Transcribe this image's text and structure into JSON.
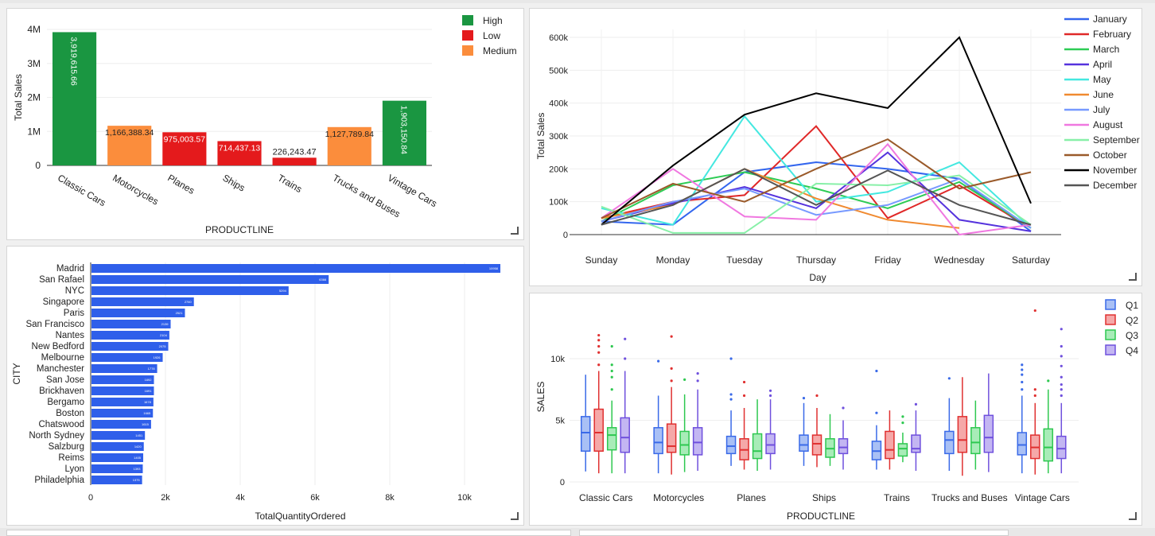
{
  "charts": {
    "bar_productline": {
      "type": "bar",
      "xlabel": "PRODUCTLINE",
      "ylabel": "Total Sales",
      "ylim": [
        0,
        4000000
      ],
      "yticks": [
        0,
        1000000,
        2000000,
        3000000,
        4000000
      ],
      "ytick_labels": [
        "0",
        "1M",
        "2M",
        "3M",
        "4M"
      ],
      "categories": [
        "Classic Cars",
        "Motorcycles",
        "Planes",
        "Ships",
        "Trains",
        "Trucks and Buses",
        "Vintage Cars"
      ],
      "values": [
        3919615.66,
        1166388.34,
        975003.57,
        714437.13,
        226243.47,
        1127789.84,
        1903150.84
      ],
      "value_labels": [
        "3,919,615.66",
        "1,166,388.34",
        "975,003.57",
        "714,437.13",
        "226,243.47",
        "1,127,789.84",
        "1,903,150.84"
      ],
      "groups": [
        "High",
        "Medium",
        "Low",
        "Low",
        "Low",
        "Medium",
        "High"
      ],
      "legend": [
        {
          "name": "High",
          "color": "#1a9641"
        },
        {
          "name": "Low",
          "color": "#e41a1c"
        },
        {
          "name": "Medium",
          "color": "#fb8d3c"
        }
      ],
      "legend_position": "top-right"
    },
    "line_day": {
      "type": "line",
      "xlabel": "Day",
      "ylabel": "Total Sales",
      "categories": [
        "Sunday",
        "Monday",
        "Tuesday",
        "Thursday",
        "Friday",
        "Wednesday",
        "Saturday"
      ],
      "ylim": [
        0,
        600000
      ],
      "yticks": [
        0,
        100000,
        200000,
        300000,
        400000,
        500000,
        600000
      ],
      "ytick_labels": [
        "0",
        "100k",
        "200k",
        "300k",
        "400k",
        "500k",
        "600k"
      ],
      "grid": true,
      "legend_position": "top-right",
      "series": [
        {
          "name": "January",
          "color": "#3366ee",
          "values": [
            40000,
            30000,
            190000,
            220000,
            200000,
            170000,
            10000
          ]
        },
        {
          "name": "February",
          "color": "#e02828",
          "values": [
            50000,
            100000,
            120000,
            330000,
            50000,
            150000,
            20000
          ]
        },
        {
          "name": "March",
          "color": "#2ecc55",
          "values": [
            40000,
            150000,
            190000,
            140000,
            80000,
            160000,
            20000
          ]
        },
        {
          "name": "April",
          "color": "#5533dd",
          "values": [
            40000,
            95000,
            145000,
            80000,
            250000,
            45000,
            10000
          ]
        },
        {
          "name": "May",
          "color": "#44e8e0",
          "values": [
            80000,
            30000,
            360000,
            100000,
            130000,
            220000,
            20000
          ]
        },
        {
          "name": "June",
          "color": "#f08a30",
          "values": [
            50000,
            90000,
            200000,
            110000,
            45000,
            20000,
            null
          ]
        },
        {
          "name": "July",
          "color": "#7799ff",
          "values": [
            40000,
            100000,
            140000,
            60000,
            90000,
            170000,
            20000
          ]
        },
        {
          "name": "August",
          "color": "#f078e0",
          "values": [
            50000,
            200000,
            55000,
            45000,
            275000,
            0,
            30000
          ]
        },
        {
          "name": "September",
          "color": "#88f0a8",
          "values": [
            85000,
            5000,
            5000,
            155000,
            150000,
            180000,
            30000
          ]
        },
        {
          "name": "October",
          "color": "#9a5a2a",
          "values": [
            50000,
            155000,
            100000,
            200000,
            290000,
            140000,
            190000
          ]
        },
        {
          "name": "November",
          "color": "#000000",
          "values": [
            30000,
            210000,
            365000,
            430000,
            385000,
            600000,
            95000
          ]
        },
        {
          "name": "December",
          "color": "#555555",
          "values": [
            30000,
            90000,
            200000,
            90000,
            195000,
            90000,
            30000
          ]
        }
      ]
    },
    "hbar_city": {
      "type": "bar",
      "orientation": "horizontal",
      "xlabel": "TotalQuantityOrdered",
      "ylabel": "CITY",
      "xlim": [
        0,
        11000
      ],
      "xticks": [
        0,
        2000,
        4000,
        6000,
        8000,
        10000
      ],
      "xtick_labels": [
        "0",
        "2k",
        "4k",
        "6k",
        "8k",
        "10k"
      ],
      "bar_color": "#2f5fea",
      "categories": [
        "Madrid",
        "San Rafael",
        "NYC",
        "Singapore",
        "Paris",
        "San Francisco",
        "Nantes",
        "New Bedford",
        "Melbourne",
        "Manchester",
        "San Jose",
        "Brickhaven",
        "Bergamo",
        "Boston",
        "Chatswood",
        "North Sydney",
        "Salzburg",
        "Reims",
        "Lyon",
        "Philadelphia"
      ],
      "values": [
        10958,
        6366,
        5294,
        2760,
        2521,
        2139,
        2104,
        2075,
        1926,
        1778,
        1692,
        1691,
        1678,
        1665,
        1615,
        1451,
        1420,
        1405,
        1393,
        1375
      ]
    },
    "box_quarter": {
      "type": "box",
      "xlabel": "PRODUCTLINE",
      "ylabel": "SALES",
      "ylim": [
        0,
        14000
      ],
      "yticks": [
        0,
        5000,
        10000
      ],
      "ytick_labels": [
        "0",
        "5k",
        "10k"
      ],
      "legend_position": "top-right",
      "categories": [
        "Classic Cars",
        "Motorcycles",
        "Planes",
        "Ships",
        "Trains",
        "Trucks and Buses",
        "Vintage Cars"
      ],
      "series": [
        {
          "name": "Q1",
          "color": "#3a6ae8",
          "fill": "#a9c0f5",
          "boxes": [
            [
              850,
              2500,
              4000,
              5300,
              8700
            ],
            [
              700,
              2300,
              3200,
              4400,
              7000
            ],
            [
              1300,
              2300,
              2900,
              3700,
              5800
            ],
            [
              1300,
              2500,
              3000,
              3800,
              6400
            ],
            [
              1000,
              1800,
              2500,
              3300,
              4600
            ],
            [
              900,
              2300,
              3400,
              4100,
              6800
            ],
            [
              700,
              2200,
              3000,
              4000,
              7000
            ]
          ],
          "outliers": [
            [],
            [
              9800
            ],
            [
              6700,
              7100,
              10000
            ],
            [
              6800
            ],
            [
              5600,
              9000
            ],
            [
              8400
            ],
            [
              7500,
              8100,
              8700,
              9100,
              9500
            ]
          ]
        },
        {
          "name": "Q2",
          "color": "#e03030",
          "fill": "#f5a8a8",
          "boxes": [
            [
              700,
              2500,
              4000,
              5900,
              9000
            ],
            [
              600,
              2400,
              2900,
              4700,
              7700
            ],
            [
              1000,
              1800,
              2600,
              3500,
              6000
            ],
            [
              1200,
              2200,
              3100,
              3800,
              6000
            ],
            [
              1000,
              1900,
              2600,
              4100,
              5800
            ],
            [
              500,
              2400,
              3400,
              5300,
              8500
            ],
            [
              600,
              1900,
              2800,
              3800,
              6400
            ]
          ],
          "outliers": [
            [
              9500,
              10500,
              11000,
              11500,
              11900
            ],
            [
              8200,
              9200,
              11800
            ],
            [
              7000,
              8100
            ],
            [
              7000
            ],
            [],
            [],
            [
              7000,
              7500,
              13900
            ]
          ]
        },
        {
          "name": "Q3",
          "color": "#2ec850",
          "fill": "#a8ecb8",
          "boxes": [
            [
              700,
              2600,
              3800,
              4400,
              6600
            ],
            [
              800,
              2200,
              3000,
              4100,
              7100
            ],
            [
              900,
              1900,
              2500,
              3900,
              6700
            ],
            [
              1300,
              2000,
              2700,
              3500,
              5500
            ],
            [
              1600,
              2100,
              2700,
              3100,
              4000
            ],
            [
              1000,
              2300,
              3200,
              4400,
              6600
            ],
            [
              700,
              1700,
              2800,
              4300,
              7500
            ]
          ],
          "outliers": [
            [
              7500,
              8500,
              9000,
              9500,
              11000
            ],
            [
              8300
            ],
            [],
            [],
            [
              4800,
              5300
            ],
            [],
            [
              8200
            ]
          ]
        },
        {
          "name": "Q4",
          "color": "#6f50dd",
          "fill": "#c3b6f2",
          "boxes": [
            [
              700,
              2400,
              3600,
              5200,
              9000
            ],
            [
              900,
              2200,
              3200,
              4400,
              7500
            ],
            [
              1000,
              2300,
              3000,
              3900,
              6700
            ],
            [
              1000,
              2300,
              2800,
              3500,
              5000
            ],
            [
              900,
              2400,
              2700,
              3800,
              5800
            ],
            [
              800,
              2400,
              3600,
              5400,
              8800
            ],
            [
              700,
              1900,
              2700,
              3700,
              6400
            ]
          ],
          "outliers": [
            [
              10000,
              11600
            ],
            [
              8200,
              8800
            ],
            [
              7000,
              7400
            ],
            [
              6000
            ],
            [
              6300
            ],
            [],
            [
              7000,
              7500,
              7900,
              8500,
              9400,
              10200,
              11000,
              12400
            ]
          ]
        }
      ]
    }
  }
}
